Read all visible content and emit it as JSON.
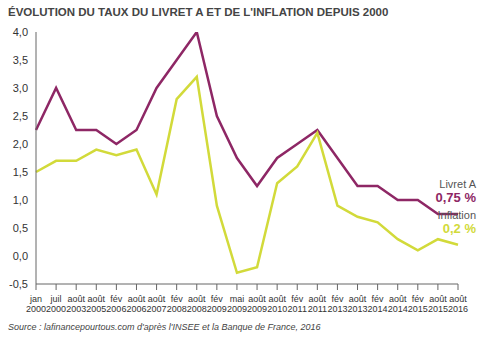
{
  "chart_data": {
    "type": "line",
    "title": "ÉVOLUTION DU TAUX DU LIVRET A ET DE L'INFLATION DEPUIS 2000",
    "source": "Source : lafinancepourtous.com d'après l'INSEE et la Banque de France, 2016",
    "categories": [
      "jan 2000",
      "juil 2000",
      "août 2003",
      "août 2005",
      "fév 2006",
      "août 2006",
      "août 2007",
      "fév 2008",
      "août 2008",
      "fév 2009",
      "mai 2009",
      "août 2009",
      "août 2010",
      "fév 2011",
      "août 2011",
      "fév 2013",
      "août 2013",
      "fév 2014",
      "août 2014",
      "fév 2015",
      "août 2015",
      "août 2016"
    ],
    "series": [
      {
        "name": "Livret A",
        "end_label": "0,75 %",
        "color": "#8e2765",
        "values": [
          2.25,
          3.0,
          2.25,
          2.25,
          2.0,
          2.25,
          3.0,
          3.5,
          4.0,
          2.5,
          1.75,
          1.25,
          1.75,
          2.0,
          2.25,
          1.75,
          1.25,
          1.25,
          1.0,
          1.0,
          0.75,
          0.75
        ]
      },
      {
        "name": "Inflation",
        "end_label": "0,2 %",
        "color": "#d2da3a",
        "values": [
          1.5,
          1.7,
          1.7,
          1.9,
          1.8,
          1.9,
          1.1,
          2.8,
          3.2,
          0.9,
          -0.3,
          -0.2,
          1.3,
          1.6,
          2.2,
          0.9,
          0.7,
          0.6,
          0.3,
          0.1,
          0.3,
          0.2
        ]
      }
    ],
    "ylim": [
      -0.5,
      4.0
    ],
    "yticks": [
      {
        "value": -0.5,
        "label": "-0,5"
      },
      {
        "value": 0,
        "label": "0,0"
      },
      {
        "value": 0.5,
        "label": "0,5"
      },
      {
        "value": 1.0,
        "label": "1,0"
      },
      {
        "value": 1.5,
        "label": "1,5"
      },
      {
        "value": 2.0,
        "label": "2,0"
      },
      {
        "value": 2.5,
        "label": "2,5"
      },
      {
        "value": 3.0,
        "label": "3,0"
      },
      {
        "value": 3.5,
        "label": "3,5"
      },
      {
        "value": 4.0,
        "label": "4,0"
      }
    ],
    "grid": false
  }
}
